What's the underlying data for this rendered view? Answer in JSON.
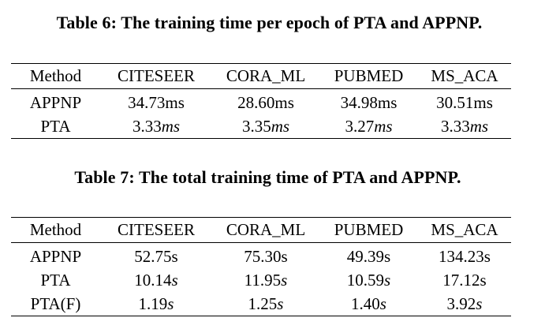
{
  "table6": {
    "caption": "Table 6: The training time per epoch of PTA and APPNP.",
    "headers": [
      "Method",
      "CITESEER",
      "CORA_ML",
      "PUBMED",
      "MS_ACA"
    ],
    "rows": [
      {
        "method": "APPNP",
        "values": [
          {
            "num": "34.73ms",
            "unit": ""
          },
          {
            "num": "28.60ms",
            "unit": ""
          },
          {
            "num": "34.98ms",
            "unit": ""
          },
          {
            "num": "30.51ms",
            "unit": ""
          }
        ]
      },
      {
        "method": "PTA",
        "values": [
          {
            "num": "3.33",
            "unit": "ms"
          },
          {
            "num": "3.35",
            "unit": "ms"
          },
          {
            "num": "3.27",
            "unit": "ms"
          },
          {
            "num": "3.33",
            "unit": "ms"
          }
        ]
      }
    ]
  },
  "table7": {
    "caption": "Table 7: The total training time of PTA and APPNP.",
    "headers": [
      "Method",
      "CITESEER",
      "CORA_ML",
      "PUBMED",
      "MS_ACA"
    ],
    "rows": [
      {
        "method": "APPNP",
        "values": [
          {
            "num": "52.75s",
            "unit": ""
          },
          {
            "num": "75.30s",
            "unit": ""
          },
          {
            "num": "49.39s",
            "unit": ""
          },
          {
            "num": "134.23s",
            "unit": ""
          }
        ]
      },
      {
        "method": "PTA",
        "values": [
          {
            "num": "10.14",
            "unit": "s"
          },
          {
            "num": "11.95",
            "unit": "s"
          },
          {
            "num": "10.59",
            "unit": "s"
          },
          {
            "num": "17.12s",
            "unit": ""
          }
        ]
      },
      {
        "method": "PTA(F)",
        "values": [
          {
            "num": "1.19",
            "unit": "s"
          },
          {
            "num": "1.25",
            "unit": "s"
          },
          {
            "num": "1.40",
            "unit": "s"
          },
          {
            "num": "3.92",
            "unit": "s"
          }
        ]
      }
    ]
  }
}
